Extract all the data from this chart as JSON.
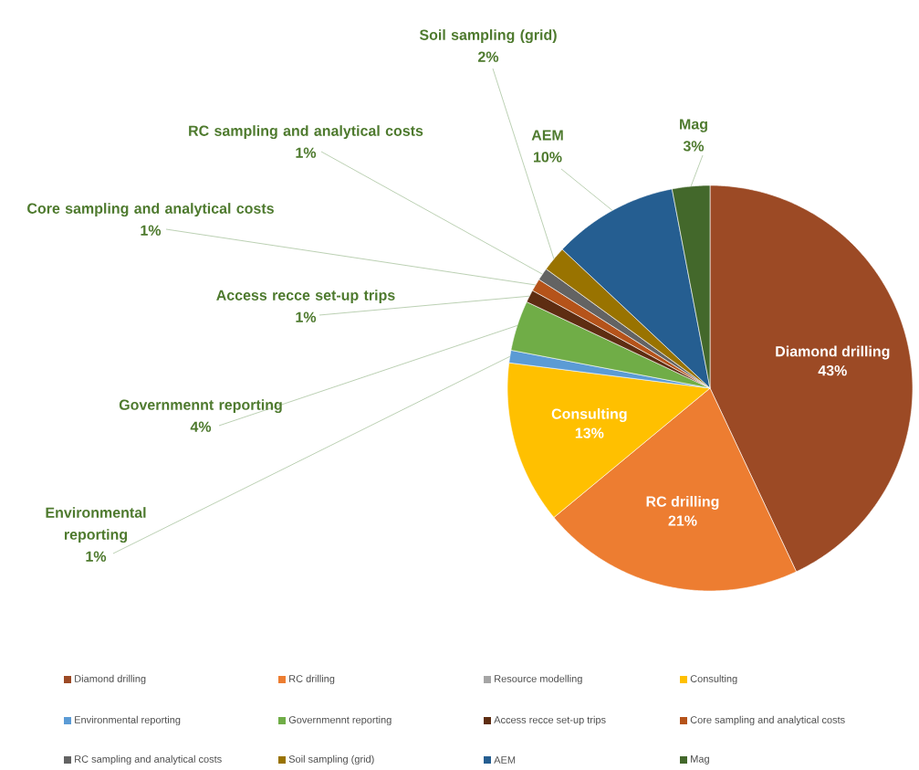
{
  "chart_data": {
    "type": "pie",
    "categories": [
      "Diamond drilling",
      "RC drilling",
      "Resource modelling",
      "Consulting",
      "Environmental reporting",
      "Governmennt reporting",
      "Access recce set-up trips",
      "Core sampling and analytical costs",
      "RC sampling and analytical costs",
      "Soil sampling (grid)",
      "AEM",
      "Mag"
    ],
    "values": [
      43,
      21,
      0,
      13,
      1,
      4,
      1,
      1,
      1,
      2,
      10,
      3
    ],
    "colors": [
      "#9c4a25",
      "#ed7d31",
      "#a5a5a5",
      "#ffc000",
      "#5b9bd5",
      "#70ad47",
      "#5e2d12",
      "#b5531a",
      "#636363",
      "#997300",
      "#255e91",
      "#43682b"
    ],
    "value_labels": [
      "43%",
      "21%",
      null,
      "13%",
      "1%",
      "4%",
      "1%",
      "1%",
      "1%",
      "2%",
      "10%",
      "3%"
    ],
    "legend": "bottom"
  }
}
